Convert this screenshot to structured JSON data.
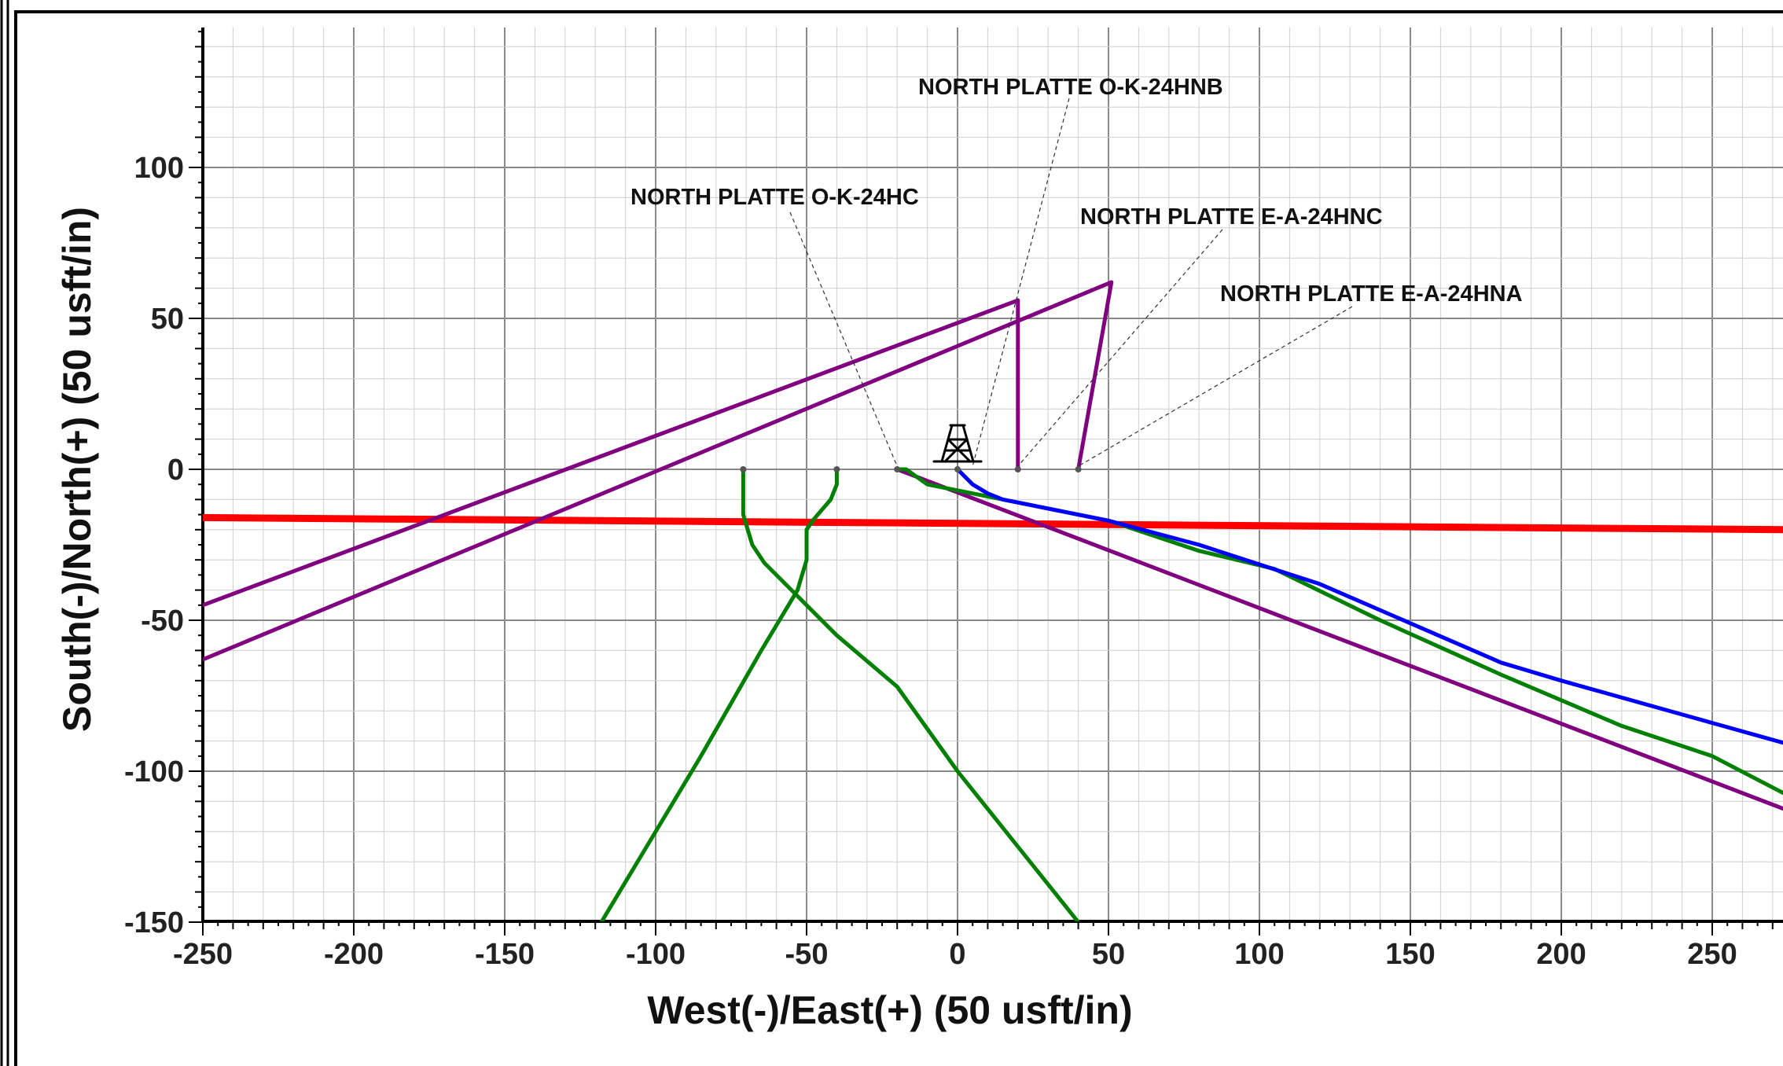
{
  "chart_data": {
    "type": "line",
    "title": "",
    "xlabel": "West(-)/East(+) (50 usft/in)",
    "ylabel": "South(-)/North(+) (50 usft/in)",
    "xlim": [
      -250,
      275
    ],
    "ylim": [
      -150,
      145
    ],
    "x_ticks": [
      -250,
      -200,
      -150,
      -100,
      -50,
      0,
      50,
      100,
      150,
      200,
      250
    ],
    "y_ticks": [
      100,
      50,
      0,
      -50,
      -100,
      -150
    ],
    "grid": true,
    "colors": {
      "red": "#ff0000",
      "purple": "#800080",
      "green": "#008000",
      "blue": "#0000ff",
      "callout": "#333333"
    },
    "series": [
      {
        "color": "red",
        "points": [
          [
            -250,
            -16
          ],
          [
            275,
            -20
          ]
        ]
      },
      {
        "color": "purple",
        "points": [
          [
            20,
            0
          ],
          [
            20,
            56
          ],
          [
            -250,
            -45
          ]
        ]
      },
      {
        "color": "purple",
        "points": [
          [
            40,
            0
          ],
          [
            51,
            62
          ],
          [
            -250,
            -63
          ]
        ]
      },
      {
        "color": "purple",
        "points": [
          [
            -20,
            0
          ],
          [
            275,
            -113
          ]
        ]
      },
      {
        "color": "green",
        "points": [
          [
            -20,
            0
          ],
          [
            -17,
            0
          ],
          [
            -10,
            -5
          ],
          [
            20,
            -11
          ],
          [
            50,
            -17
          ],
          [
            80,
            -27
          ],
          [
            105,
            -33
          ],
          [
            140,
            -50
          ],
          [
            180,
            -68
          ],
          [
            220,
            -85
          ],
          [
            250,
            -95
          ],
          [
            275,
            -108
          ]
        ]
      },
      {
        "color": "green",
        "points": [
          [
            -71,
            0
          ],
          [
            -71,
            -5
          ],
          [
            -71,
            -15
          ],
          [
            -68,
            -25
          ],
          [
            -64,
            -31
          ],
          [
            -55,
            -40
          ],
          [
            -40,
            -55
          ],
          [
            -20,
            -72
          ],
          [
            0,
            -100
          ],
          [
            20,
            -125
          ],
          [
            32,
            -140
          ],
          [
            40,
            -150
          ]
        ]
      },
      {
        "color": "green",
        "points": [
          [
            -40,
            0
          ],
          [
            -40,
            -5
          ],
          [
            -42,
            -10
          ],
          [
            -48,
            -17
          ],
          [
            -50,
            -20
          ],
          [
            -50,
            -30
          ],
          [
            -53,
            -40
          ],
          [
            -65,
            -60
          ],
          [
            -85,
            -95
          ],
          [
            -103,
            -125
          ],
          [
            -118,
            -150
          ]
        ]
      },
      {
        "color": "blue",
        "points": [
          [
            0,
            0
          ],
          [
            2,
            -2
          ],
          [
            5,
            -5
          ],
          [
            10,
            -8
          ],
          [
            15,
            -10
          ],
          [
            25,
            -12
          ],
          [
            50,
            -17
          ],
          [
            80,
            -25
          ],
          [
            120,
            -38
          ],
          [
            150,
            -51
          ],
          [
            180,
            -64
          ],
          [
            200,
            -70
          ],
          [
            250,
            -84
          ],
          [
            275,
            -91
          ]
        ]
      }
    ],
    "wells": [
      {
        "name": "NORTH PLATTE O-K-24HNB",
        "x": 5,
        "y": 0
      },
      {
        "name": "NORTH PLATTE O-K-24HC",
        "x": -20,
        "y": 0
      },
      {
        "name": "NORTH PLATTE E-A-24HNC",
        "x": 20,
        "y": 0
      },
      {
        "name": "NORTH PLATTE E-A-24HNA",
        "x": 40,
        "y": 0
      }
    ],
    "rig": {
      "name": "rig-icon",
      "x": 0,
      "y": 4
    }
  }
}
